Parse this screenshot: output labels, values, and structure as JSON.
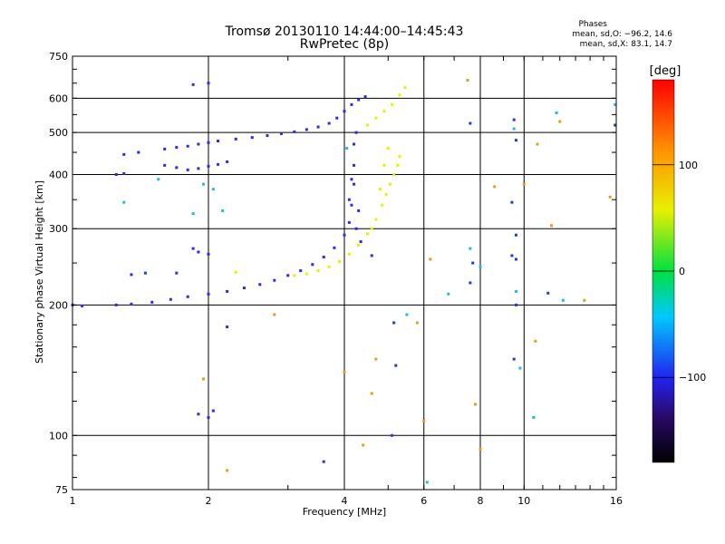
{
  "header": {
    "title_line1": "Tromsø 20130110 14:44:00–14:45:43",
    "title_line2": "RwPretec (8p)"
  },
  "stats": {
    "heading": "Phases",
    "line_o": "mean, sd,O: −96.2, 14.6",
    "line_x": "mean, sd,X:  83.1, 14.7"
  },
  "colorbar": {
    "unit_label": "[deg]",
    "tick_labels": [
      "100",
      "0",
      "−100"
    ],
    "tick_values": [
      100,
      0,
      -100
    ],
    "range": [
      -180,
      180
    ]
  },
  "chart_data": {
    "type": "scatter",
    "xlabel": "Frequency [MHz]",
    "ylabel": "Stationary phase Virtual Height [km]",
    "xscale": "log",
    "yscale": "log",
    "xlim": [
      1,
      16
    ],
    "ylim": [
      75,
      750
    ],
    "x_ticks": [
      1,
      2,
      4,
      6,
      8,
      10,
      16
    ],
    "x_tick_labels": [
      "1",
      "2",
      "4",
      "6",
      "8",
      "10",
      "16"
    ],
    "y_ticks": [
      75,
      100,
      200,
      300,
      400,
      500,
      600,
      750
    ],
    "y_tick_labels": [
      "75",
      "100",
      "200",
      "300",
      "400",
      "500",
      "600",
      "750"
    ],
    "grid": true,
    "series": [
      {
        "points": [
          [
            1.0,
            200
          ],
          [
            1.05,
            199
          ],
          [
            1.25,
            200
          ],
          [
            1.35,
            201
          ],
          [
            1.5,
            203
          ],
          [
            1.65,
            206
          ],
          [
            1.8,
            209
          ],
          [
            2.0,
            212
          ],
          [
            2.2,
            215
          ],
          [
            2.4,
            219
          ],
          [
            2.6,
            223
          ],
          [
            2.8,
            228
          ],
          [
            3.0,
            234
          ],
          [
            3.2,
            240
          ],
          [
            3.4,
            248
          ],
          [
            3.6,
            258
          ],
          [
            3.8,
            271
          ],
          [
            4.0,
            290
          ],
          [
            4.1,
            310
          ],
          [
            4.15,
            340
          ],
          [
            4.2,
            380
          ],
          [
            4.2,
            420
          ],
          [
            4.2,
            470
          ],
          [
            4.25,
            500
          ],
          [
            4.15,
            390
          ],
          [
            4.1,
            350
          ],
          [
            4.3,
            330
          ],
          [
            4.25,
            300
          ],
          [
            1.3,
            445
          ],
          [
            1.4,
            450
          ],
          [
            1.6,
            458
          ],
          [
            1.7,
            462
          ],
          [
            1.8,
            465
          ],
          [
            1.9,
            470
          ],
          [
            2.0,
            474
          ],
          [
            2.1,
            478
          ],
          [
            2.3,
            483
          ],
          [
            2.5,
            487
          ],
          [
            2.7,
            492
          ],
          [
            2.9,
            497
          ],
          [
            3.1,
            502
          ],
          [
            3.3,
            508
          ],
          [
            3.5,
            515
          ],
          [
            3.7,
            525
          ],
          [
            3.85,
            540
          ],
          [
            4.0,
            560
          ],
          [
            4.15,
            580
          ],
          [
            4.3,
            595
          ],
          [
            4.45,
            605
          ],
          [
            1.6,
            420
          ],
          [
            1.7,
            415
          ],
          [
            1.8,
            410
          ],
          [
            1.9,
            413
          ],
          [
            2.0,
            418
          ],
          [
            2.1,
            422
          ],
          [
            2.2,
            428
          ],
          [
            1.25,
            400
          ],
          [
            1.3,
            402
          ],
          [
            1.85,
            645
          ],
          [
            2.0,
            650
          ],
          [
            1.9,
            112
          ],
          [
            2.0,
            110
          ],
          [
            2.05,
            114
          ],
          [
            1.9,
            265
          ],
          [
            2.0,
            262
          ],
          [
            1.85,
            270
          ],
          [
            1.35,
            235
          ],
          [
            1.7,
            237
          ],
          [
            3.6,
            87
          ],
          [
            2.2,
            178
          ],
          [
            4.35,
            280
          ],
          [
            4.6,
            260
          ]
        ],
        "color": "#2a2af0",
        "phase": -96.2
      },
      {
        "points": [
          [
            3.1,
            234
          ],
          [
            3.3,
            236
          ],
          [
            3.5,
            240
          ],
          [
            3.7,
            245
          ],
          [
            3.9,
            252
          ],
          [
            4.1,
            262
          ],
          [
            4.3,
            275
          ],
          [
            4.5,
            292
          ],
          [
            4.7,
            315
          ],
          [
            4.85,
            340
          ],
          [
            4.95,
            360
          ],
          [
            5.05,
            380
          ],
          [
            5.15,
            400
          ],
          [
            5.25,
            420
          ],
          [
            5.3,
            440
          ],
          [
            4.8,
            370
          ],
          [
            4.9,
            420
          ],
          [
            5.0,
            460
          ],
          [
            4.6,
            300
          ],
          [
            4.5,
            520
          ],
          [
            4.7,
            540
          ],
          [
            4.9,
            560
          ],
          [
            5.1,
            580
          ],
          [
            5.3,
            610
          ],
          [
            5.45,
            635
          ],
          [
            2.3,
            238
          ]
        ],
        "color": "#e8f000",
        "phase": 83.1
      },
      {
        "points": [
          [
            7.5,
            660
          ],
          [
            12.0,
            530
          ],
          [
            10.7,
            470
          ],
          [
            15.5,
            355
          ],
          [
            10.0,
            380
          ],
          [
            8.6,
            375
          ],
          [
            11.5,
            305
          ],
          [
            4.4,
            95
          ],
          [
            8.0,
            93
          ],
          [
            6.2,
            255
          ],
          [
            4.0,
            140
          ],
          [
            2.8,
            190
          ],
          [
            5.8,
            182
          ],
          [
            2.2,
            83
          ],
          [
            4.6,
            125
          ],
          [
            7.8,
            118
          ],
          [
            13.6,
            205
          ],
          [
            10.6,
            165
          ],
          [
            1.95,
            135
          ],
          [
            4.7,
            150
          ],
          [
            6.0,
            108
          ]
        ],
        "color": "#e89a20",
        "phase": 130
      },
      {
        "points": [
          [
            1.3,
            345
          ],
          [
            1.55,
            390
          ],
          [
            1.95,
            380
          ],
          [
            2.05,
            370
          ],
          [
            4.05,
            460
          ],
          [
            6.8,
            212
          ],
          [
            7.6,
            270
          ],
          [
            9.6,
            215
          ],
          [
            9.8,
            143
          ],
          [
            10.5,
            110
          ],
          [
            12.2,
            205
          ],
          [
            1.85,
            325
          ],
          [
            2.15,
            330
          ],
          [
            5.5,
            190
          ],
          [
            8.0,
            245
          ],
          [
            6.1,
            78
          ],
          [
            9.5,
            510
          ],
          [
            11.8,
            555
          ],
          [
            15.9,
            580
          ]
        ],
        "color": "#22b8e8",
        "phase": -40
      },
      {
        "points": [
          [
            9.5,
            535
          ],
          [
            9.6,
            480
          ],
          [
            9.4,
            345
          ],
          [
            9.6,
            290
          ],
          [
            7.6,
            525
          ],
          [
            7.7,
            250
          ],
          [
            9.6,
            255
          ],
          [
            7.6,
            225
          ],
          [
            9.6,
            200
          ],
          [
            9.5,
            150
          ],
          [
            15.9,
            520
          ],
          [
            5.15,
            182
          ],
          [
            5.2,
            145
          ],
          [
            5.1,
            100
          ],
          [
            9.4,
            260
          ],
          [
            11.3,
            213
          ],
          [
            1.45,
            237
          ]
        ],
        "color": "#1e3ad8",
        "phase": -110
      }
    ]
  }
}
